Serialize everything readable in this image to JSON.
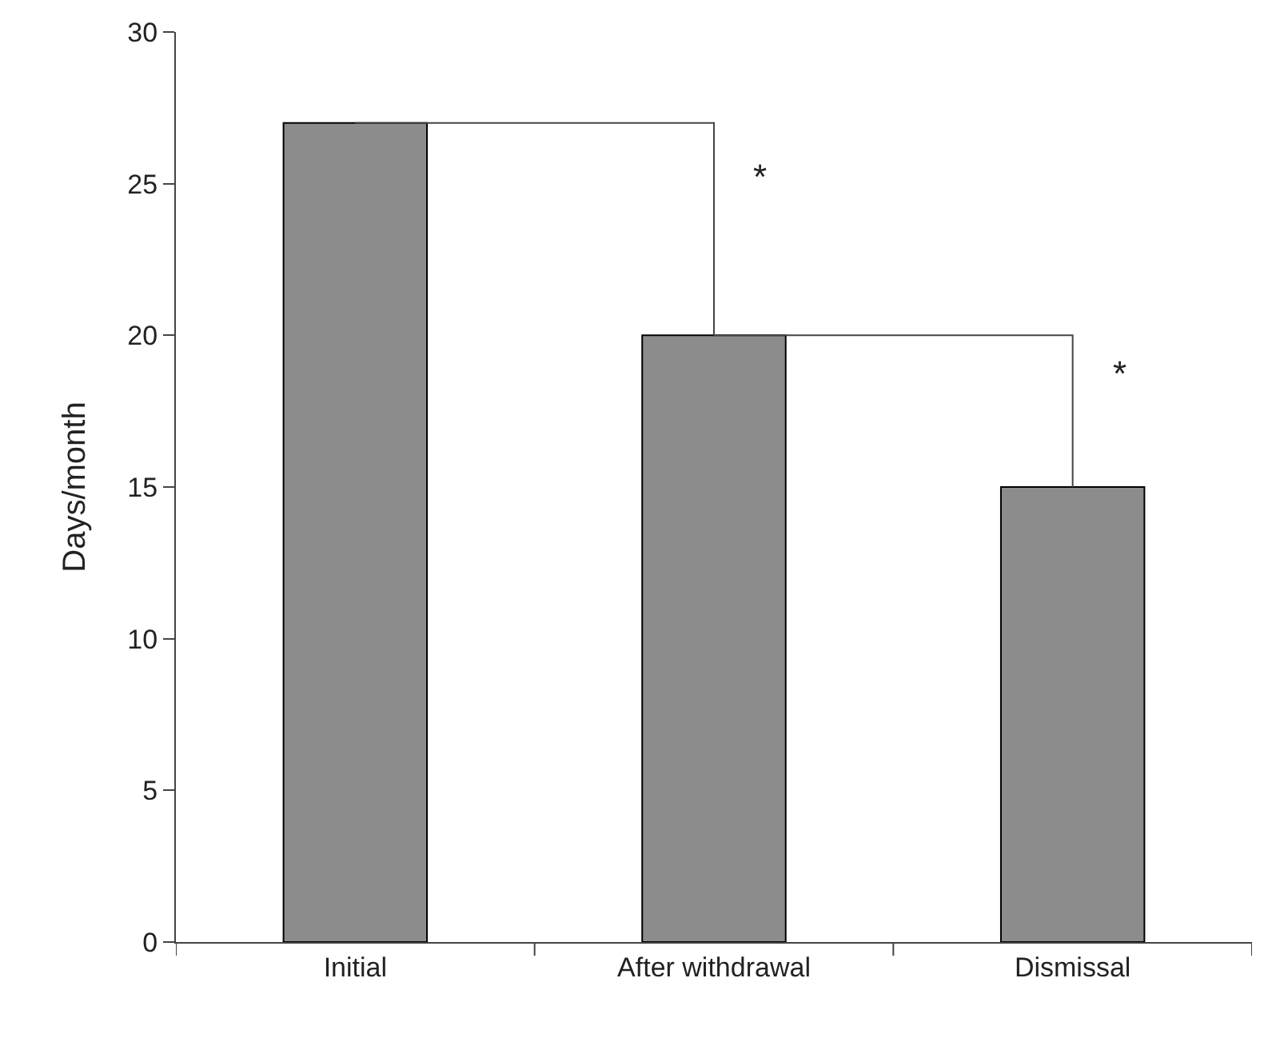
{
  "chart_data": {
    "type": "bar",
    "ylabel": "Days/month",
    "categories": [
      "Initial",
      "After withdrawal",
      "Dismissal"
    ],
    "values": [
      27,
      20,
      15
    ],
    "color": "#8c8c8c",
    "ylim": [
      0,
      30
    ],
    "yticks": [
      0,
      5,
      10,
      15,
      20,
      25,
      30
    ],
    "legend": false,
    "annotations": [
      "*",
      "*"
    ]
  }
}
